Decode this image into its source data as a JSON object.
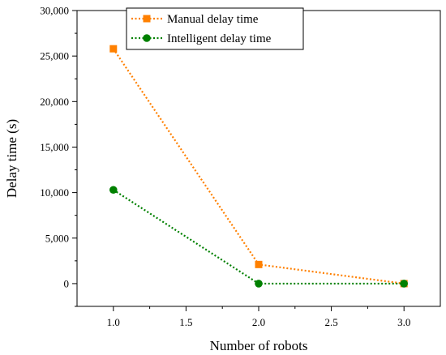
{
  "chart_data": {
    "type": "line",
    "xlabel": "Number of robots",
    "ylabel": "Delay time (s)",
    "xlim": [
      0.75,
      3.25
    ],
    "ylim": [
      -2500,
      30000
    ],
    "x_ticks": [
      1.0,
      1.5,
      2.0,
      2.5,
      3.0
    ],
    "x_tick_labels": [
      "1.0",
      "1.5",
      "2.0",
      "2.5",
      "3.0"
    ],
    "y_ticks": [
      0,
      5000,
      10000,
      15000,
      20000,
      25000,
      30000
    ],
    "y_tick_labels": [
      "0",
      "5,000",
      "10,000",
      "15,000",
      "20,000",
      "25,000",
      "30,000"
    ],
    "grid": false,
    "legend_position": "top-center",
    "x": [
      1.0,
      2.0,
      3.0
    ],
    "series": [
      {
        "name": "Manual delay time",
        "values": [
          25800,
          2100,
          0
        ],
        "color": "#FF8000",
        "marker": "square",
        "line_style": "dotted"
      },
      {
        "name": "Intelligent delay time",
        "values": [
          10300,
          0,
          0
        ],
        "color": "#008000",
        "marker": "circle",
        "line_style": "dotted"
      }
    ]
  }
}
